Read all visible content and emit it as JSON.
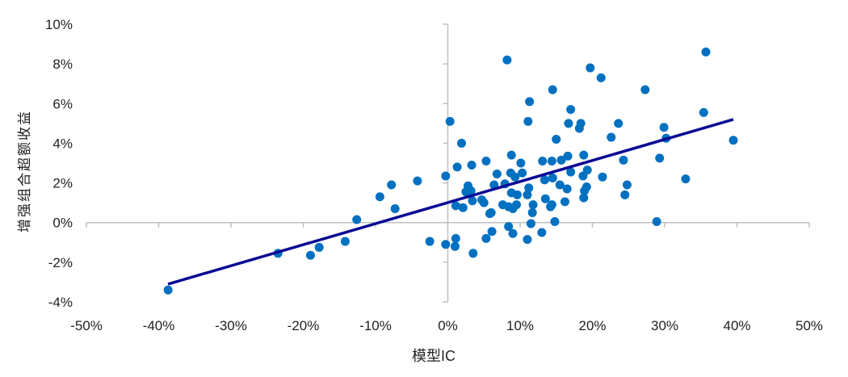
{
  "chart_data": {
    "type": "scatter",
    "xlabel": "模型IC",
    "ylabel": "增强组合超额收益",
    "xlim": [
      -50,
      50
    ],
    "ylim": [
      -4,
      10
    ],
    "xticks": [
      -50,
      -40,
      -30,
      -20,
      -10,
      0,
      10,
      20,
      30,
      40,
      50
    ],
    "yticks": [
      -4,
      -2,
      0,
      2,
      4,
      6,
      8,
      10
    ],
    "xtick_labels": [
      "-50%",
      "-40%",
      "-30%",
      "-20%",
      "-10%",
      "0%",
      "10%",
      "20%",
      "30%",
      "40%",
      "50%"
    ],
    "ytick_labels": [
      "-4%",
      "-2%",
      "0%",
      "2%",
      "4%",
      "6%",
      "8%",
      "10%"
    ],
    "unit": "%",
    "grid": false,
    "point_color": "#0070C0",
    "trendline_color": "#0A0A96",
    "trendline": {
      "x": [
        -38.7,
        39.5
      ],
      "y": [
        -3.1,
        5.2
      ]
    },
    "points": [
      [
        -38.7,
        -3.4
      ],
      [
        -23.5,
        -1.55
      ],
      [
        -19,
        -1.65
      ],
      [
        -17.8,
        -1.25
      ],
      [
        -14.2,
        -0.95
      ],
      [
        -12.6,
        0.15
      ],
      [
        -9.4,
        1.3
      ],
      [
        -7.8,
        1.9
      ],
      [
        -7.3,
        0.7
      ],
      [
        -4.2,
        2.1
      ],
      [
        -2.5,
        -0.95
      ],
      [
        -0.3,
        2.35
      ],
      [
        0.3,
        5.1
      ],
      [
        1.9,
        4.0
      ],
      [
        1.3,
        2.8
      ],
      [
        3.3,
        2.9
      ],
      [
        5.3,
        3.1
      ],
      [
        8.8,
        3.4
      ],
      [
        10.1,
        3.0
      ],
      [
        11.1,
        5.1
      ],
      [
        17,
        5.7
      ],
      [
        16.7,
        5.0
      ],
      [
        18.4,
        5.0
      ],
      [
        18.2,
        4.75
      ],
      [
        15,
        4.2
      ],
      [
        13.1,
        3.1
      ],
      [
        14.4,
        3.1
      ],
      [
        15.7,
        3.15
      ],
      [
        16.6,
        3.35
      ],
      [
        18.8,
        3.4
      ],
      [
        6.8,
        2.45
      ],
      [
        2.8,
        1.85
      ],
      [
        2.5,
        1.55
      ],
      [
        3.2,
        1.6
      ],
      [
        6.4,
        1.9
      ],
      [
        7.9,
        1.95
      ],
      [
        8.7,
        2.5
      ],
      [
        9.3,
        2.3
      ],
      [
        10.3,
        2.5
      ],
      [
        8.8,
        1.5
      ],
      [
        9.6,
        1.4
      ],
      [
        11,
        1.4
      ],
      [
        11.2,
        1.75
      ],
      [
        13.4,
        2.15
      ],
      [
        14.5,
        2.25
      ],
      [
        15.5,
        1.9
      ],
      [
        16.5,
        1.7
      ],
      [
        17,
        2.55
      ],
      [
        18.7,
        2.35
      ],
      [
        19.3,
        2.65
      ],
      [
        19.2,
        1.8
      ],
      [
        18.9,
        1.6
      ],
      [
        18.8,
        1.25
      ],
      [
        4.7,
        1.15
      ],
      [
        5,
        1.0
      ],
      [
        1.1,
        0.85
      ],
      [
        2.1,
        0.75
      ],
      [
        3.4,
        1.1
      ],
      [
        6,
        0.5
      ],
      [
        5.8,
        0.45
      ],
      [
        7.6,
        0.9
      ],
      [
        8.4,
        0.8
      ],
      [
        9,
        0.7
      ],
      [
        9.5,
        0.9
      ],
      [
        11.8,
        0.9
      ],
      [
        11.7,
        0.5
      ],
      [
        13.5,
        1.2
      ],
      [
        14.4,
        0.9
      ],
      [
        14.2,
        0.8
      ],
      [
        16.2,
        1.05
      ],
      [
        11.5,
        -0.05
      ],
      [
        14.8,
        0.05
      ],
      [
        8.4,
        -0.2
      ],
      [
        9,
        -0.55
      ],
      [
        6.1,
        -0.45
      ],
      [
        5.3,
        -0.8
      ],
      [
        11,
        -0.85
      ],
      [
        13,
        -0.5
      ],
      [
        -0.3,
        -1.1
      ],
      [
        1.1,
        -0.8
      ],
      [
        1,
        -1.2
      ],
      [
        3.5,
        -1.55
      ],
      [
        23.6,
        5.0
      ],
      [
        22.6,
        4.3
      ],
      [
        24.3,
        3.15
      ],
      [
        21.4,
        2.3
      ],
      [
        24.8,
        1.9
      ],
      [
        24.5,
        1.4
      ],
      [
        8.2,
        8.2
      ],
      [
        11.3,
        6.1
      ],
      [
        14.5,
        6.7
      ],
      [
        19.7,
        7.8
      ],
      [
        21.2,
        7.3
      ],
      [
        27.3,
        6.7
      ],
      [
        35.7,
        8.6
      ],
      [
        35.4,
        5.55
      ],
      [
        29.9,
        4.8
      ],
      [
        30.2,
        4.25
      ],
      [
        29.3,
        3.25
      ],
      [
        32.9,
        2.2
      ],
      [
        28.9,
        0.05
      ],
      [
        39.5,
        4.15
      ]
    ]
  }
}
